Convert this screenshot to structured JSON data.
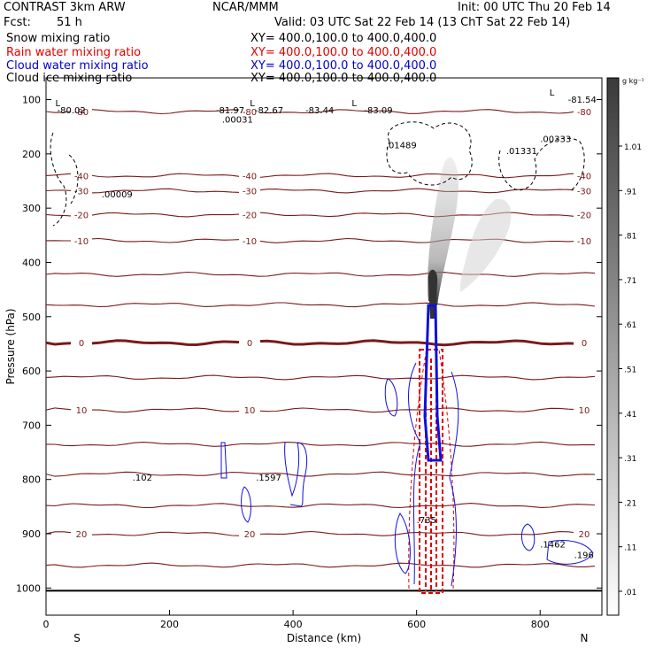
{
  "header": {
    "model": "CONTRAST  3km ARW",
    "org": "NCAR/MMM",
    "init": "Init: 00 UTC Thu 20 Feb 14",
    "fcst_label": "Fcst:",
    "fcst_value": "51 h",
    "valid": "Valid: 03 UTC Sat 22 Feb 14 (13 ChT Sat 22 Feb 14)"
  },
  "legend": [
    {
      "field": "Snow mixing ratio",
      "xy": "XY= 400.0,100.0 to 400.0,400.0",
      "color": "#000000"
    },
    {
      "field": "Rain water mixing ratio",
      "xy": "XY= 400.0,100.0 to 400.0,400.0",
      "color": "#e00000"
    },
    {
      "field": "Cloud water mixing ratio",
      "xy": "XY= 400.0,100.0 to 400.0,400.0",
      "color": "#0000d0"
    },
    {
      "field": "Cloud ice mixing ratio",
      "xy": "XY= 400.0,100.0 to 400.0,400.0",
      "color": "#000000"
    }
  ],
  "chart_data": {
    "type": "contour",
    "xlabel": "Distance (km)",
    "ylabel": "Pressure (hPa)",
    "xlim": [
      0,
      900
    ],
    "ylim": [
      1050,
      60
    ],
    "x_ticks": [
      0,
      200,
      400,
      600,
      800
    ],
    "y_ticks": [
      100,
      200,
      300,
      400,
      500,
      600,
      700,
      800,
      900,
      1000
    ],
    "x_end_labels": {
      "left": "S",
      "right": "N"
    },
    "colorbar": {
      "unit": "g kg⁻¹",
      "levels": [
        ".01",
        ".11",
        ".21",
        ".31",
        ".41",
        ".51",
        ".61",
        ".71",
        ".81",
        ".91",
        "1.01"
      ]
    },
    "temperature_contours": [
      {
        "p": 122,
        "label": "-80"
      },
      {
        "p": 240,
        "label": "-40"
      },
      {
        "p": 268,
        "label": "-30"
      },
      {
        "p": 312,
        "label": "-20"
      },
      {
        "p": 360,
        "label": "-10"
      },
      {
        "p": 422,
        "label": ""
      },
      {
        "p": 478,
        "label": ""
      },
      {
        "p": 548,
        "label": "0"
      },
      {
        "p": 612,
        "label": ""
      },
      {
        "p": 672,
        "label": "10"
      },
      {
        "p": 735,
        "label": ""
      },
      {
        "p": 790,
        "label": ""
      },
      {
        "p": 848,
        "label": ""
      },
      {
        "p": 900,
        "label": "20"
      },
      {
        "p": 958,
        "label": ""
      }
    ],
    "extrema_labels": [
      {
        "x": 15,
        "p": 112,
        "text": "L"
      },
      {
        "x": 18,
        "p": 125,
        "text": "-80.02"
      },
      {
        "x": 330,
        "p": 112,
        "text": "L"
      },
      {
        "x": 338,
        "p": 125,
        "text": "-82.67"
      },
      {
        "x": 420,
        "p": 125,
        "text": "-83.44"
      },
      {
        "x": 495,
        "p": 112,
        "text": "L"
      },
      {
        "x": 515,
        "p": 125,
        "text": "-83.09"
      },
      {
        "x": 815,
        "p": 93,
        "text": "L"
      },
      {
        "x": 845,
        "p": 106,
        "text": "-81.54"
      },
      {
        "x": 275,
        "p": 125,
        "text": "-81.97"
      },
      {
        "x": 285,
        "p": 142,
        "text": ".00031"
      },
      {
        "x": 550,
        "p": 190,
        "text": ".01489"
      },
      {
        "x": 745,
        "p": 200,
        "text": ".01331"
      },
      {
        "x": 800,
        "p": 178,
        "text": ".00333"
      },
      {
        "x": 90,
        "p": 280,
        "text": ".00009"
      },
      {
        "x": 140,
        "p": 802,
        "text": ".102"
      },
      {
        "x": 340,
        "p": 802,
        "text": ".1597"
      },
      {
        "x": 800,
        "p": 925,
        "text": ".1462"
      },
      {
        "x": 855,
        "p": 945,
        "text": ".196"
      },
      {
        "x": 600,
        "p": 880,
        "text": ".735"
      }
    ]
  }
}
